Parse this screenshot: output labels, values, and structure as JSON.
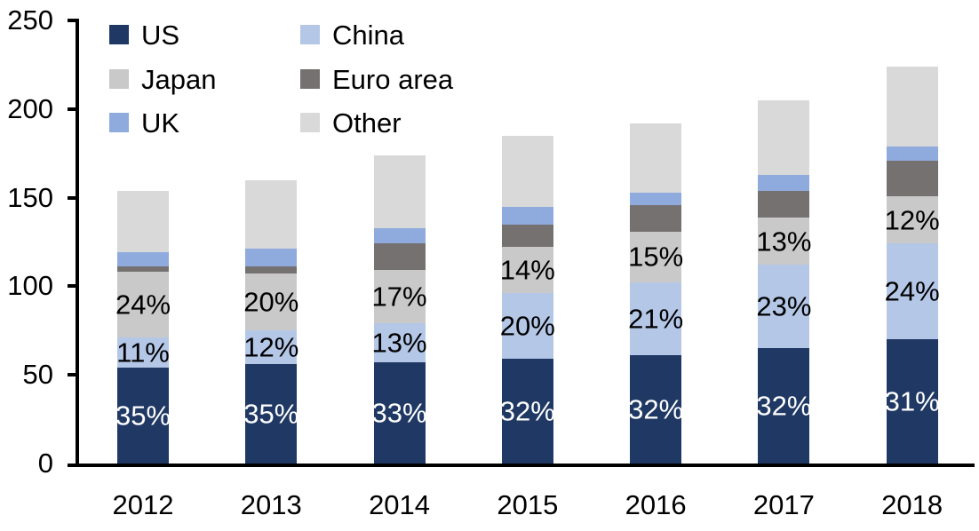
{
  "chart_data": {
    "type": "bar",
    "stacked": true,
    "title": "",
    "categories": [
      "2012",
      "2013",
      "2014",
      "2015",
      "2016",
      "2017",
      "2018"
    ],
    "series": [
      {
        "name": "US",
        "color": "#1F3864",
        "values": [
          54,
          56,
          57,
          59,
          61,
          65,
          70
        ],
        "segment_labels": [
          "35%",
          "35%",
          "33%",
          "32%",
          "32%",
          "32%",
          "31%"
        ],
        "label_color": "#FFFFFF"
      },
      {
        "name": "China",
        "color": "#B4C7E7",
        "values": [
          17,
          19,
          22,
          37,
          41,
          47,
          54
        ],
        "segment_labels": [
          "11%",
          "12%",
          "13%",
          "20%",
          "21%",
          "23%",
          "24%"
        ],
        "label_color": "#000000"
      },
      {
        "name": "Japan",
        "color": "#C9C9C9",
        "values": [
          37,
          32,
          30,
          26,
          29,
          27,
          27
        ],
        "segment_labels": [
          "24%",
          "20%",
          "17%",
          "14%",
          "15%",
          "13%",
          "12%"
        ],
        "label_color": "#000000"
      },
      {
        "name": "Euro area",
        "color": "#767171",
        "values": [
          3,
          4,
          15,
          13,
          15,
          15,
          20
        ],
        "segment_labels": null,
        "label_color": null
      },
      {
        "name": "UK",
        "color": "#8FAADC",
        "values": [
          8,
          10,
          9,
          10,
          7,
          9,
          8
        ],
        "segment_labels": null,
        "label_color": null
      },
      {
        "name": "Other",
        "color": "#D9D9D9",
        "values": [
          35,
          39,
          41,
          40,
          39,
          42,
          45
        ],
        "segment_labels": null,
        "label_color": null
      }
    ],
    "totals": [
      154,
      160,
      174,
      185,
      192,
      205,
      224
    ],
    "y_axis": {
      "min": 0,
      "max": 250,
      "step": 50,
      "tick_labels": [
        "0",
        "50",
        "100",
        "150",
        "200",
        "250"
      ]
    },
    "x_axis": {
      "tick_labels": [
        "2012",
        "2013",
        "2014",
        "2015",
        "2016",
        "2017",
        "2018"
      ]
    },
    "legend": {
      "position": "top-left",
      "columns": 2,
      "order": [
        "US",
        "China",
        "Japan",
        "Euro area",
        "UK",
        "Other"
      ]
    },
    "axis_color": "#000000",
    "text_color": "#000000",
    "background_color": "#FFFFFF",
    "grid": false
  }
}
